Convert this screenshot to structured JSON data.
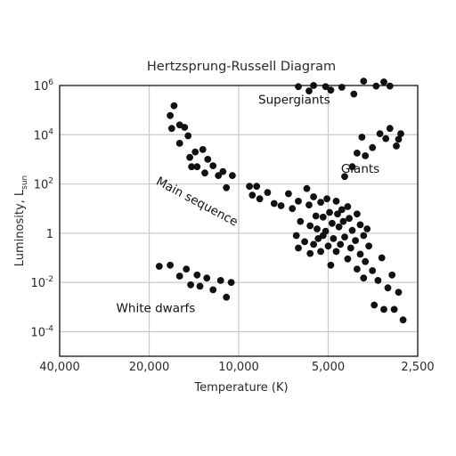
{
  "chart_data": {
    "type": "scatter",
    "title": "Hertzsprung-Russell Diagram",
    "xlabel": "Temperature (K)",
    "ylabel": "Luminosity, L",
    "ylabel_sub": "sun",
    "x_scale": "log",
    "x_reversed": true,
    "y_scale": "log",
    "xlim": [
      40000,
      2500
    ],
    "ylim": [
      1e-05,
      1000000
    ],
    "grid": true,
    "x_ticks": [
      {
        "value": 40000,
        "label": "40,000"
      },
      {
        "value": 20000,
        "label": "20,000"
      },
      {
        "value": 10000,
        "label": "10,000"
      },
      {
        "value": 5000,
        "label": "5,000"
      },
      {
        "value": 2500,
        "label": "2,500"
      }
    ],
    "y_ticks": [
      {
        "value": 1000000,
        "base": "10",
        "exp": "6"
      },
      {
        "value": 10000,
        "base": "10",
        "exp": "4"
      },
      {
        "value": 100,
        "base": "10",
        "exp": "2"
      },
      {
        "value": 1,
        "base": "1",
        "exp": ""
      },
      {
        "value": 0.01,
        "base": "10",
        "exp": "-2"
      },
      {
        "value": 0.0001,
        "base": "10",
        "exp": "-4"
      }
    ],
    "annotations": [
      {
        "text": "Supergiants",
        "x": 6500,
        "y": 180000,
        "rotate": 0
      },
      {
        "text": "Giants",
        "x": 3900,
        "y": 280,
        "rotate": 0
      },
      {
        "text": "Main sequence",
        "x": 14000,
        "y": 14,
        "rotate": 28
      },
      {
        "text": "White dwarfs",
        "x": 19000,
        "y": 0.00062,
        "rotate": 0
      }
    ],
    "points": [
      {
        "x": 6300,
        "y": 900000
      },
      {
        "x": 5800,
        "y": 600000
      },
      {
        "x": 5600,
        "y": 1000000
      },
      {
        "x": 5100,
        "y": 900000
      },
      {
        "x": 4900,
        "y": 650000
      },
      {
        "x": 4500,
        "y": 850000
      },
      {
        "x": 4100,
        "y": 450000
      },
      {
        "x": 3800,
        "y": 1500000
      },
      {
        "x": 3450,
        "y": 950000
      },
      {
        "x": 3250,
        "y": 1400000
      },
      {
        "x": 3100,
        "y": 950000
      },
      {
        "x": 4400,
        "y": 200
      },
      {
        "x": 4150,
        "y": 500
      },
      {
        "x": 4000,
        "y": 1800
      },
      {
        "x": 3850,
        "y": 8000
      },
      {
        "x": 3750,
        "y": 1400
      },
      {
        "x": 3550,
        "y": 3000
      },
      {
        "x": 3350,
        "y": 11000
      },
      {
        "x": 3200,
        "y": 7000
      },
      {
        "x": 3100,
        "y": 18000
      },
      {
        "x": 2950,
        "y": 3500
      },
      {
        "x": 2900,
        "y": 6500
      },
      {
        "x": 2850,
        "y": 11000
      },
      {
        "x": 17000,
        "y": 60000
      },
      {
        "x": 16500,
        "y": 150000
      },
      {
        "x": 16800,
        "y": 18000
      },
      {
        "x": 15800,
        "y": 25000
      },
      {
        "x": 15200,
        "y": 20000
      },
      {
        "x": 15800,
        "y": 4500
      },
      {
        "x": 14800,
        "y": 9000
      },
      {
        "x": 14600,
        "y": 1200
      },
      {
        "x": 14000,
        "y": 2000
      },
      {
        "x": 13200,
        "y": 2500
      },
      {
        "x": 14400,
        "y": 500
      },
      {
        "x": 13800,
        "y": 500
      },
      {
        "x": 13000,
        "y": 280
      },
      {
        "x": 12700,
        "y": 1000
      },
      {
        "x": 12200,
        "y": 550
      },
      {
        "x": 11700,
        "y": 220
      },
      {
        "x": 11300,
        "y": 320
      },
      {
        "x": 11000,
        "y": 70
      },
      {
        "x": 10500,
        "y": 220
      },
      {
        "x": 9200,
        "y": 80
      },
      {
        "x": 8700,
        "y": 80
      },
      {
        "x": 9000,
        "y": 35
      },
      {
        "x": 8500,
        "y": 25
      },
      {
        "x": 8000,
        "y": 45
      },
      {
        "x": 7600,
        "y": 16
      },
      {
        "x": 7200,
        "y": 13
      },
      {
        "x": 6800,
        "y": 40
      },
      {
        "x": 6600,
        "y": 10
      },
      {
        "x": 6300,
        "y": 20
      },
      {
        "x": 6200,
        "y": 3
      },
      {
        "x": 5900,
        "y": 65
      },
      {
        "x": 5800,
        "y": 14
      },
      {
        "x": 5750,
        "y": 2
      },
      {
        "x": 5600,
        "y": 30
      },
      {
        "x": 5500,
        "y": 5
      },
      {
        "x": 5450,
        "y": 1.5
      },
      {
        "x": 5300,
        "y": 18
      },
      {
        "x": 5200,
        "y": 4.5
      },
      {
        "x": 5100,
        "y": 1.2
      },
      {
        "x": 5050,
        "y": 25
      },
      {
        "x": 4950,
        "y": 7
      },
      {
        "x": 4850,
        "y": 2.5
      },
      {
        "x": 4700,
        "y": 20
      },
      {
        "x": 4650,
        "y": 6
      },
      {
        "x": 4600,
        "y": 1.8
      },
      {
        "x": 4500,
        "y": 9
      },
      {
        "x": 4450,
        "y": 3
      },
      {
        "x": 4300,
        "y": 12
      },
      {
        "x": 4250,
        "y": 4
      },
      {
        "x": 4150,
        "y": 1.3
      },
      {
        "x": 4000,
        "y": 6
      },
      {
        "x": 3900,
        "y": 2.2
      },
      {
        "x": 3800,
        "y": 0.8
      },
      {
        "x": 3700,
        "y": 1.5
      },
      {
        "x": 6400,
        "y": 0.8
      },
      {
        "x": 6300,
        "y": 0.25
      },
      {
        "x": 6000,
        "y": 0.45
      },
      {
        "x": 5750,
        "y": 0.15
      },
      {
        "x": 5600,
        "y": 0.35
      },
      {
        "x": 5400,
        "y": 0.6
      },
      {
        "x": 5300,
        "y": 0.18
      },
      {
        "x": 5200,
        "y": 0.8
      },
      {
        "x": 5000,
        "y": 0.3
      },
      {
        "x": 4900,
        "y": 0.05
      },
      {
        "x": 4800,
        "y": 0.6
      },
      {
        "x": 4700,
        "y": 0.18
      },
      {
        "x": 4550,
        "y": 0.35
      },
      {
        "x": 4400,
        "y": 0.7
      },
      {
        "x": 4300,
        "y": 0.09
      },
      {
        "x": 4200,
        "y": 0.25
      },
      {
        "x": 4050,
        "y": 0.5
      },
      {
        "x": 4000,
        "y": 0.035
      },
      {
        "x": 3900,
        "y": 0.14
      },
      {
        "x": 3800,
        "y": 0.015
      },
      {
        "x": 3750,
        "y": 0.07
      },
      {
        "x": 3650,
        "y": 0.3
      },
      {
        "x": 3550,
        "y": 0.03
      },
      {
        "x": 3500,
        "y": 0.0012
      },
      {
        "x": 3400,
        "y": 0.012
      },
      {
        "x": 3300,
        "y": 0.1
      },
      {
        "x": 3250,
        "y": 0.0008
      },
      {
        "x": 3150,
        "y": 0.006
      },
      {
        "x": 3050,
        "y": 0.02
      },
      {
        "x": 3000,
        "y": 0.0008
      },
      {
        "x": 2900,
        "y": 0.004
      },
      {
        "x": 2800,
        "y": 0.0003
      },
      {
        "x": 18500,
        "y": 0.045
      },
      {
        "x": 17000,
        "y": 0.05
      },
      {
        "x": 15800,
        "y": 0.018
      },
      {
        "x": 15000,
        "y": 0.035
      },
      {
        "x": 14500,
        "y": 0.008
      },
      {
        "x": 13800,
        "y": 0.02
      },
      {
        "x": 13500,
        "y": 0.007
      },
      {
        "x": 12800,
        "y": 0.015
      },
      {
        "x": 12200,
        "y": 0.005
      },
      {
        "x": 11500,
        "y": 0.012
      },
      {
        "x": 11000,
        "y": 0.0025
      },
      {
        "x": 10600,
        "y": 0.01
      }
    ]
  }
}
